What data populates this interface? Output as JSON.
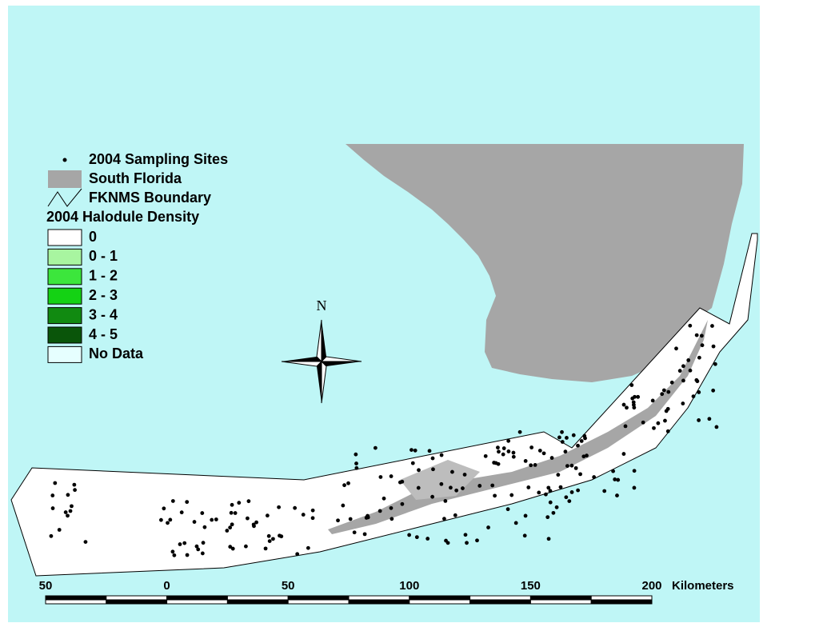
{
  "legend": {
    "items": [
      {
        "label": "2004 Sampling Sites"
      },
      {
        "label": "South Florida"
      },
      {
        "label": "FKNMS Boundary"
      }
    ],
    "density": {
      "title": "2004 Halodule Density",
      "classes": [
        {
          "label": "0",
          "color": "#ffffff"
        },
        {
          "label": "0 - 1",
          "color": "#a8f5a0"
        },
        {
          "label": "1 - 2",
          "color": "#3ce63c"
        },
        {
          "label": "2 - 3",
          "color": "#14d214"
        },
        {
          "label": "3 - 4",
          "color": "#118a11"
        },
        {
          "label": "4 - 5",
          "color": "#0a550a"
        },
        {
          "label": "No Data",
          "color": "#e6ffff"
        }
      ]
    }
  },
  "north": "N",
  "scale": {
    "ticks": [
      "50",
      "0",
      "50",
      "100",
      "150",
      "200"
    ],
    "unit": "Kilometers"
  }
}
